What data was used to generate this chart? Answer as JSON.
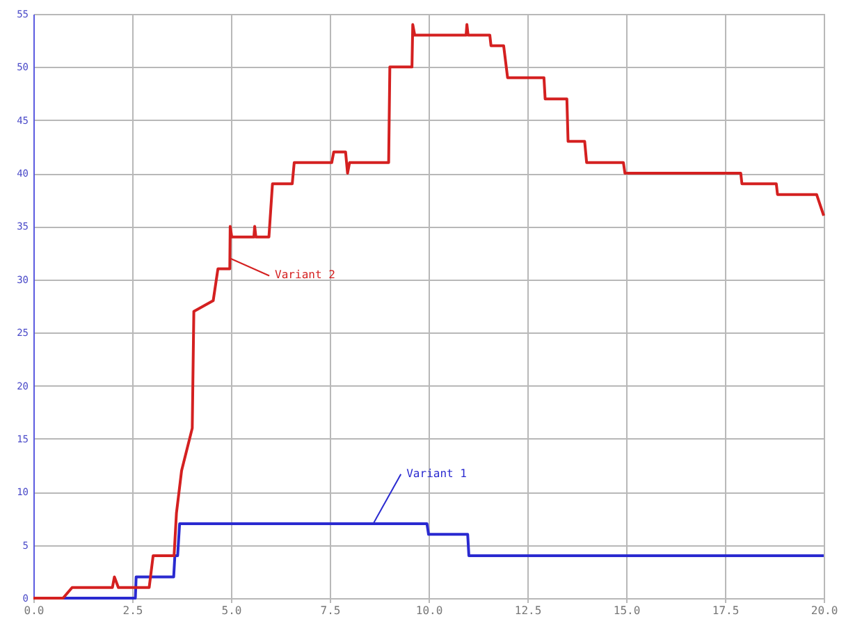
{
  "chart_data": {
    "type": "line",
    "xlim": [
      0,
      20
    ],
    "ylim": [
      0,
      55
    ],
    "xticks": [
      {
        "value": 0,
        "label": "0.0"
      },
      {
        "value": 2.5,
        "label": "2.5"
      },
      {
        "value": 5,
        "label": "5.0"
      },
      {
        "value": 7.5,
        "label": "7.5"
      },
      {
        "value": 10,
        "label": "10.0"
      },
      {
        "value": 12.5,
        "label": "12.5"
      },
      {
        "value": 15,
        "label": "15.0"
      },
      {
        "value": 17.5,
        "label": "17.5"
      },
      {
        "value": 20,
        "label": "20.0"
      }
    ],
    "yticks": [
      0,
      5,
      10,
      15,
      20,
      25,
      30,
      35,
      40,
      45,
      50,
      55
    ],
    "grid": true,
    "marker": "none",
    "line_style": "solid",
    "series": [
      {
        "color": "#2a2ad0",
        "x": [
          0,
          2.58,
          2.6,
          3.55,
          3.58,
          3.65,
          3.7,
          9.96,
          10,
          10.99,
          11.02,
          20
        ],
        "values": [
          0,
          0,
          2,
          2,
          4,
          4,
          7,
          7,
          6,
          6,
          4,
          4
        ]
      },
      {
        "color": "#d42020",
        "x": [
          0,
          0.75,
          0.98,
          2,
          2.05,
          2.15,
          2.93,
          3.03,
          3.56,
          3.62,
          3.75,
          4.02,
          4.06,
          4.55,
          4.67,
          4.97,
          4.98,
          5.02,
          5.58,
          5.6,
          5.63,
          5.96,
          6.05,
          6.55,
          6.6,
          7.55,
          7.6,
          7.9,
          7.95,
          8.0,
          8.99,
          9.02,
          9.58,
          9.6,
          9.65,
          10.95,
          10.97,
          11.0,
          11.55,
          11.58,
          11.9,
          12.0,
          12.92,
          12.95,
          13.5,
          13.53,
          13.95,
          14.0,
          14.93,
          14.97,
          17.9,
          17.93,
          18.8,
          18.83,
          19.82,
          20
        ],
        "values": [
          0,
          0,
          1,
          1,
          2,
          1,
          1,
          4,
          4,
          8,
          12,
          16,
          27,
          28,
          31,
          31,
          35,
          34,
          34,
          35,
          34,
          34,
          39,
          39,
          41,
          41,
          42,
          42,
          40,
          41,
          41,
          50,
          50,
          54,
          53,
          53,
          54,
          53,
          53,
          52,
          52,
          49,
          49,
          47,
          47,
          43,
          43,
          41,
          41,
          40,
          40,
          39,
          39,
          38,
          38,
          36
        ]
      }
    ],
    "annotations": [
      {
        "text": "Variant 1",
        "x": 8.6,
        "y": 7
      },
      {
        "text": "Variant 2",
        "x": 4.97,
        "y": 32
      }
    ]
  }
}
